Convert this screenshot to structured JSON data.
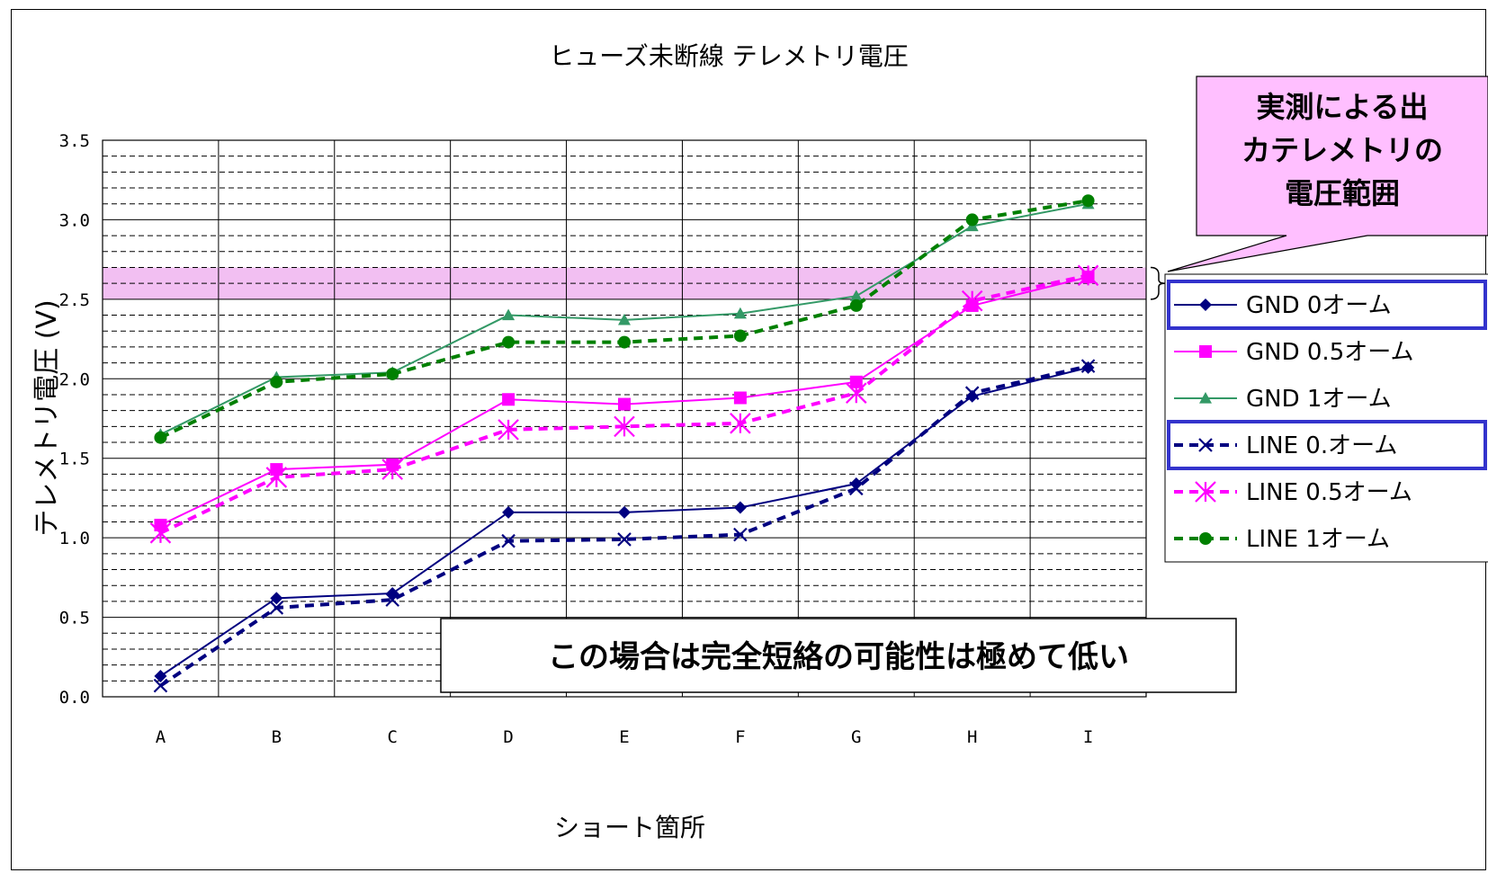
{
  "chart_data": {
    "type": "line",
    "title": "ヒューズ未断線 テレメトリ電圧",
    "xlabel": "ショート箇所",
    "ylabel": "テレメトリ電圧 (V)",
    "ylim": [
      0,
      3.5
    ],
    "yticks": [
      "0.0",
      "0.5",
      "1.0",
      "1.5",
      "2.0",
      "2.5",
      "3.0",
      "3.5"
    ],
    "ytick_values": [
      0,
      0.5,
      1.0,
      1.5,
      2.0,
      2.5,
      3.0,
      3.5
    ],
    "categories": [
      "A",
      "B",
      "C",
      "D",
      "E",
      "F",
      "G",
      "H",
      "I"
    ],
    "grid": true,
    "legend_position": "right",
    "band": {
      "ymin": 2.5,
      "ymax": 2.7,
      "color": "#f0b4f0"
    },
    "callout": {
      "lines": [
        "実測による出",
        "カテレメトリの",
        "電圧範囲"
      ]
    },
    "annotation": "この場合は完全短絡の可能性は極めて低い",
    "series": [
      {
        "name": "GND 0オーム",
        "color": "#000080",
        "dash": "solid",
        "marker": "diamond",
        "values": [
          0.13,
          0.62,
          0.65,
          1.16,
          1.16,
          1.19,
          1.34,
          1.89,
          2.07
        ]
      },
      {
        "name": "GND 0.5オーム",
        "color": "#ff00ff",
        "dash": "solid",
        "marker": "square",
        "values": [
          1.08,
          1.43,
          1.46,
          1.87,
          1.84,
          1.88,
          1.98,
          2.46,
          2.64
        ]
      },
      {
        "name": "GND 1オーム",
        "color": "#339966",
        "dash": "solid",
        "marker": "triangle",
        "values": [
          1.65,
          2.01,
          2.04,
          2.4,
          2.37,
          2.41,
          2.52,
          2.96,
          3.1
        ]
      },
      {
        "name": "LINE 0.オーム",
        "color": "#000080",
        "dash": "dashed",
        "marker": "x",
        "values": [
          0.07,
          0.56,
          0.61,
          0.98,
          0.99,
          1.02,
          1.31,
          1.91,
          2.08
        ]
      },
      {
        "name": "LINE 0.5オーム",
        "color": "#ff00ff",
        "dash": "dashed",
        "marker": "star",
        "values": [
          1.03,
          1.38,
          1.43,
          1.68,
          1.7,
          1.72,
          1.91,
          2.49,
          2.65
        ]
      },
      {
        "name": "LINE 1オーム",
        "color": "#008000",
        "dash": "dashed",
        "marker": "circle",
        "values": [
          1.63,
          1.98,
          2.03,
          2.23,
          2.23,
          2.27,
          2.46,
          3.0,
          3.12
        ]
      }
    ],
    "highlighted_legend_entries": [
      "GND 0オーム",
      "LINE 0.オーム"
    ]
  }
}
